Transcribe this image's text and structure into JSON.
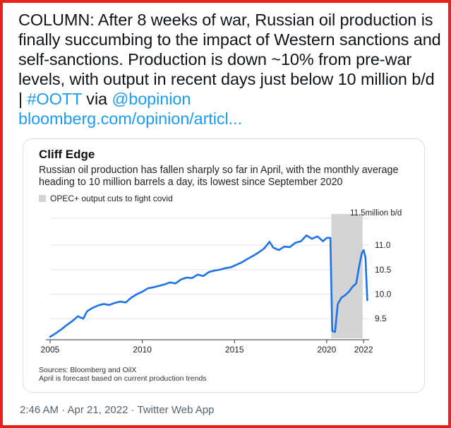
{
  "tweet": {
    "text_main": "COLUMN: After 8 weeks of war, Russian oil production is finally succumbing to the impact of Western sanctions and self-sanctions. Production is down ~10% from pre-war levels, with output in recent days just below 10 million b/d | ",
    "hashtag": "#OOTT",
    "via": " via ",
    "mention": "@bopinion",
    "url": "bloomberg.com/opinion/articl..."
  },
  "card": {
    "title": "Cliff Edge",
    "subtitle": "Russian oil production has fallen sharply so far in April, with the monthly average heading to 10 million barrels a day, its lowest since September 2020",
    "legend_label": "OPEC+ output cuts to fight covid",
    "sources_line1": "Sources: Bloomberg and OilX",
    "sources_line2": "April is forecast based on current production trends"
  },
  "chart_data": {
    "type": "line",
    "unit_label": "11.5million b/d",
    "x_ticks": [
      "2005",
      "2010",
      "2015",
      "2020",
      "2022"
    ],
    "y_ticks": [
      "11.0",
      "10.5",
      "10.0",
      "9.5"
    ],
    "ylim": [
      9.1,
      11.55
    ],
    "xlim": [
      2005.0,
      2022.3
    ],
    "shaded_band": {
      "label": "OPEC+ output cuts to fight covid",
      "x_start": 2020.25,
      "x_end": 2021.95,
      "color": "#d4d4d4"
    },
    "line_color": "#1a73e8",
    "series": [
      {
        "x": [
          2005.0,
          2005.3,
          2005.6,
          2005.9,
          2006.2,
          2006.5,
          2006.8,
          2007.0,
          2007.3,
          2007.6,
          2007.9,
          2008.2,
          2008.5,
          2008.8,
          2009.1,
          2009.4,
          2009.7,
          2010.0,
          2010.3,
          2010.6,
          2010.9,
          2011.2,
          2011.5,
          2011.8,
          2012.1,
          2012.4,
          2012.7,
          2013.0,
          2013.3,
          2013.6,
          2013.9,
          2014.2,
          2014.5,
          2014.8,
          2015.1,
          2015.4,
          2015.7,
          2016.0,
          2016.3,
          2016.6,
          2016.9,
          2017.1,
          2017.4,
          2017.7,
          2018.0,
          2018.3,
          2018.6,
          2018.9,
          2019.2,
          2019.5,
          2019.8,
          2020.0,
          2020.2,
          2020.3,
          2020.45,
          2020.6,
          2020.8,
          2021.0,
          2021.2,
          2021.4,
          2021.6,
          2021.75,
          2021.9,
          2022.0,
          2022.1,
          2022.2
        ],
        "y": [
          9.13,
          9.2,
          9.28,
          9.37,
          9.45,
          9.55,
          9.5,
          9.65,
          9.72,
          9.77,
          9.8,
          9.78,
          9.82,
          9.85,
          9.83,
          9.93,
          10.0,
          10.05,
          10.12,
          10.14,
          10.17,
          10.2,
          10.24,
          10.22,
          10.3,
          10.34,
          10.33,
          10.4,
          10.37,
          10.45,
          10.48,
          10.5,
          10.53,
          10.55,
          10.6,
          10.65,
          10.72,
          10.78,
          10.85,
          10.93,
          11.07,
          10.95,
          10.9,
          10.97,
          10.96,
          11.05,
          11.08,
          11.2,
          11.13,
          11.18,
          11.08,
          11.15,
          11.15,
          9.25,
          9.23,
          9.8,
          9.93,
          9.98,
          10.05,
          10.15,
          10.22,
          10.55,
          10.83,
          10.9,
          10.75,
          9.88
        ]
      }
    ]
  },
  "meta": {
    "timestamp": "2:46 AM · Apr 21, 2022 · Twitter Web App"
  }
}
